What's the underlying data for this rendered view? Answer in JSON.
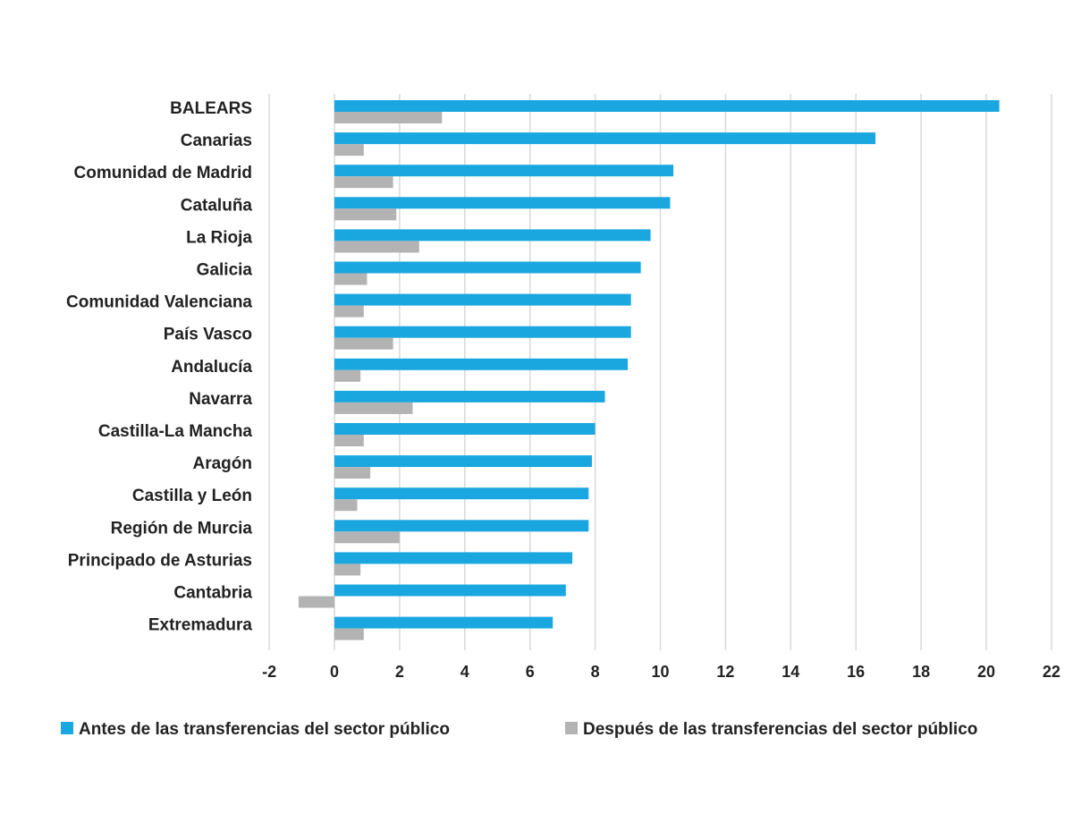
{
  "chart_data": {
    "type": "bar",
    "orientation": "horizontal",
    "categories": [
      "BALEARS",
      "Canarias",
      "Comunidad de Madrid",
      "Cataluña",
      "La Rioja",
      "Galicia",
      "Comunidad Valenciana",
      "País Vasco",
      "Andalucía",
      "Navarra",
      "Castilla-La Mancha",
      "Aragón",
      "Castilla y León",
      "Región de Murcia",
      "Principado de Asturias",
      "Cantabria",
      "Extremadura"
    ],
    "series": [
      {
        "name": "Antes de las transferencias del sector público",
        "color": "#1aa7e0",
        "values": [
          20.4,
          16.6,
          10.4,
          10.3,
          9.7,
          9.4,
          9.1,
          9.1,
          9.0,
          8.3,
          8.0,
          7.9,
          7.8,
          7.8,
          7.3,
          7.1,
          6.7
        ]
      },
      {
        "name": "Después de las transferencias del sector público",
        "color": "#b3b3b3",
        "values": [
          3.3,
          0.9,
          1.8,
          1.9,
          2.6,
          1.0,
          0.9,
          1.8,
          0.8,
          2.4,
          0.9,
          1.1,
          0.7,
          2.0,
          0.8,
          -1.1,
          0.9
        ]
      }
    ],
    "xlim": [
      -2,
      22
    ],
    "xticks": [
      "-2",
      "0",
      "2",
      "4",
      "6",
      "8",
      "10",
      "12",
      "14",
      "16",
      "18",
      "20",
      "22"
    ],
    "grid": "vertical",
    "legend": "bottom"
  }
}
